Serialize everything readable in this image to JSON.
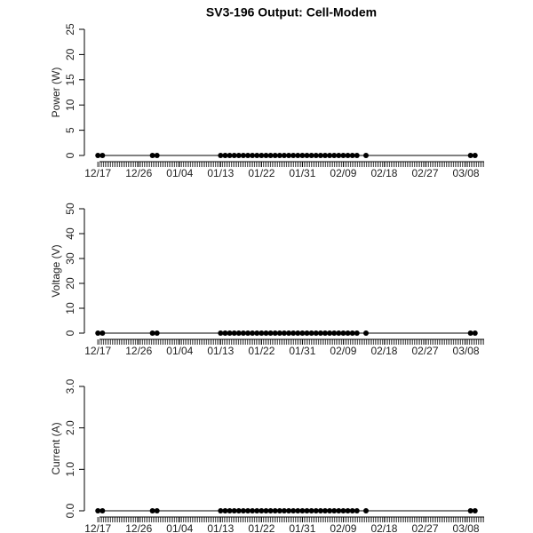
{
  "chart_data": [
    {
      "type": "line",
      "title": "SV3-196 Output: Cell-Modem",
      "y_label": "Power (W)",
      "color": "#000000",
      "xlim": [
        "12/15",
        "03/12"
      ],
      "xticks": [
        "12/17",
        "12/26",
        "01/04",
        "01/13",
        "01/22",
        "01/31",
        "02/09",
        "02/18",
        "02/27",
        "03/08"
      ],
      "ylim": [
        0,
        25
      ],
      "yticks": [
        0,
        5,
        10,
        15,
        20,
        25
      ],
      "x": [
        "12/17",
        "12/18",
        "12/29",
        "12/30",
        "01/13",
        "01/14",
        "01/15",
        "01/16",
        "01/17",
        "01/18",
        "01/19",
        "01/20",
        "01/21",
        "01/22",
        "01/23",
        "01/24",
        "01/25",
        "01/26",
        "01/27",
        "01/28",
        "01/29",
        "01/30",
        "01/31",
        "02/01",
        "02/02",
        "02/03",
        "02/04",
        "02/05",
        "02/06",
        "02/07",
        "02/08",
        "02/09",
        "02/10",
        "02/11",
        "02/12",
        "02/14",
        "03/09",
        "03/10"
      ],
      "values": [
        0,
        0,
        0,
        0,
        0,
        0,
        0,
        0,
        0,
        0,
        0,
        0,
        0,
        0,
        0,
        0,
        0,
        0,
        0,
        0,
        0,
        0,
        0,
        0,
        0,
        0,
        0,
        0,
        0,
        0,
        0,
        0,
        0,
        0,
        0,
        0,
        0,
        0
      ]
    },
    {
      "type": "line",
      "y_label": "Voltage (V)",
      "color": "#000000",
      "xlim": [
        "12/15",
        "03/12"
      ],
      "xticks": [
        "12/17",
        "12/26",
        "01/04",
        "01/13",
        "01/22",
        "01/31",
        "02/09",
        "02/18",
        "02/27",
        "03/08"
      ],
      "ylim": [
        0,
        50
      ],
      "yticks": [
        0,
        10,
        20,
        30,
        40,
        50
      ],
      "x": [
        "12/17",
        "12/18",
        "12/29",
        "12/30",
        "01/13",
        "01/14",
        "01/15",
        "01/16",
        "01/17",
        "01/18",
        "01/19",
        "01/20",
        "01/21",
        "01/22",
        "01/23",
        "01/24",
        "01/25",
        "01/26",
        "01/27",
        "01/28",
        "01/29",
        "01/30",
        "01/31",
        "02/01",
        "02/02",
        "02/03",
        "02/04",
        "02/05",
        "02/06",
        "02/07",
        "02/08",
        "02/09",
        "02/10",
        "02/11",
        "02/12",
        "02/14",
        "03/09",
        "03/10"
      ],
      "values": [
        0,
        0,
        0,
        0,
        0,
        0,
        0,
        0,
        0,
        0,
        0,
        0,
        0,
        0,
        0,
        0,
        0,
        0,
        0,
        0,
        0,
        0,
        0,
        0,
        0,
        0,
        0,
        0,
        0,
        0,
        0,
        0,
        0,
        0,
        0,
        0,
        0,
        0
      ]
    },
    {
      "type": "line",
      "y_label": "Current (A)",
      "color": "#000000",
      "xlim": [
        "12/15",
        "03/12"
      ],
      "xticks": [
        "12/17",
        "12/26",
        "01/04",
        "01/13",
        "01/22",
        "01/31",
        "02/09",
        "02/18",
        "02/27",
        "03/08"
      ],
      "ylim": [
        0,
        3
      ],
      "yticks": [
        {
          "value": 0,
          "label": "0.0"
        },
        {
          "value": 1,
          "label": "1.0"
        },
        {
          "value": 2,
          "label": "2.0"
        },
        {
          "value": 3,
          "label": "3.0"
        }
      ],
      "x": [
        "12/17",
        "12/18",
        "12/29",
        "12/30",
        "01/13",
        "01/14",
        "01/15",
        "01/16",
        "01/17",
        "01/18",
        "01/19",
        "01/20",
        "01/21",
        "01/22",
        "01/23",
        "01/24",
        "01/25",
        "01/26",
        "01/27",
        "01/28",
        "01/29",
        "01/30",
        "01/31",
        "02/01",
        "02/02",
        "02/03",
        "02/04",
        "02/05",
        "02/06",
        "02/07",
        "02/08",
        "02/09",
        "02/10",
        "02/11",
        "02/12",
        "02/14",
        "03/09",
        "03/10"
      ],
      "values": [
        0,
        0,
        0,
        0,
        0,
        0,
        0,
        0,
        0,
        0,
        0,
        0,
        0,
        0,
        0,
        0,
        0,
        0,
        0,
        0,
        0,
        0,
        0,
        0,
        0,
        0,
        0,
        0,
        0,
        0,
        0,
        0,
        0,
        0,
        0,
        0,
        0,
        0
      ]
    }
  ]
}
